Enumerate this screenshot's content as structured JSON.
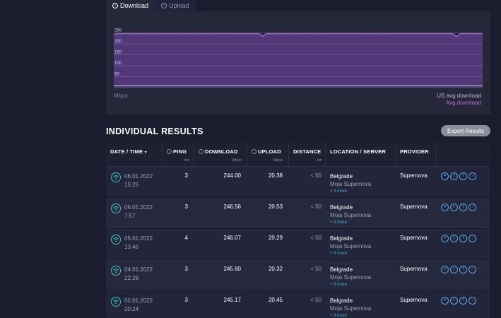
{
  "tabs": [
    {
      "label": "Download",
      "active": true
    },
    {
      "label": "Upload",
      "active": false
    }
  ],
  "chart_data": {
    "type": "area",
    "y_ticks": [
      250,
      200,
      150,
      100,
      50
    ],
    "ylim": [
      0,
      290
    ],
    "unit_label": "Mbps",
    "legend": [
      "US avg download",
      "Avg download"
    ],
    "series": [
      {
        "name": "Avg download",
        "values": [
          244,
          246,
          245,
          246,
          246,
          245,
          246,
          246,
          245,
          246,
          245,
          246,
          245,
          246,
          246,
          246,
          246,
          246,
          245,
          246,
          246,
          246,
          245,
          246,
          246,
          246,
          245,
          246,
          246,
          246,
          246,
          246,
          246,
          246,
          245,
          246,
          246,
          246,
          246,
          246,
          234,
          246,
          246,
          245,
          246,
          246,
          246,
          246,
          245,
          246,
          246,
          246,
          246,
          246,
          246,
          245,
          246,
          246,
          246,
          246,
          246,
          246,
          246,
          246,
          246,
          246,
          246,
          246,
          245,
          246,
          246,
          246,
          245,
          246,
          246,
          246,
          246,
          246,
          246,
          246,
          246,
          246,
          246,
          246,
          246,
          246,
          246,
          246,
          246,
          246,
          246,
          246,
          232,
          246,
          246,
          246,
          246,
          246,
          246,
          245
        ]
      },
      {
        "name": "US avg download",
        "values": [
          8,
          8
        ]
      }
    ],
    "colors": {
      "area": "#5b3a85",
      "line": "#a77bd9",
      "grid": "#7a6a9c"
    }
  },
  "results": {
    "title": "INDIVIDUAL RESULTS",
    "export_label": "Export Results",
    "columns": {
      "date": "DATE / TIME",
      "ping": "PING",
      "ping_unit": "ms",
      "download": "DOWNLOAD",
      "download_unit": "Mbps",
      "upload": "UPLOAD",
      "upload_unit": "Mbps",
      "distance": "DISTANCE",
      "distance_unit": "km",
      "location": "LOCATION / SERVER",
      "provider": "PROVIDER"
    },
    "rows": [
      {
        "date": "06.01.2022",
        "time": "15:26",
        "ping": "3",
        "download": "244.00",
        "upload": "20.38",
        "distance": "< 50",
        "city": "Belgrade",
        "server": "Moja Supernova",
        "more": "+ 3 more",
        "provider": "Supernova"
      },
      {
        "date": "06.01.2022",
        "time": "7:57",
        "ping": "3",
        "download": "246.56",
        "upload": "20.53",
        "distance": "< 50",
        "city": "Belgrade",
        "server": "Moja Supernova",
        "more": "+ 3 more",
        "provider": "Supernova"
      },
      {
        "date": "05.01.2022",
        "time": "13:46",
        "ping": "4",
        "download": "246.07",
        "upload": "20.29",
        "distance": "< 50",
        "city": "Belgrade",
        "server": "Moja Supernova",
        "more": "+ 3 more",
        "provider": "Supernova"
      },
      {
        "date": "04.01.2022",
        "time": "22:26",
        "ping": "3",
        "download": "245.60",
        "upload": "20.32",
        "distance": "< 50",
        "city": "Belgrade",
        "server": "Moja Supernova",
        "more": "+ 3 more",
        "provider": "Supernova"
      },
      {
        "date": "02.01.2022",
        "time": "20:24",
        "ping": "3",
        "download": "245.17",
        "upload": "20.45",
        "distance": "< 50",
        "city": "Belgrade",
        "server": "Moja Supernova",
        "more": "+ 3 more",
        "provider": "Supernova"
      }
    ]
  },
  "icons": {
    "download": "download-circle-icon",
    "upload": "upload-circle-icon",
    "wifi": "wifi-icon",
    "actions": [
      "link-icon",
      "twitter-icon",
      "facebook-icon",
      "more-icon"
    ]
  }
}
